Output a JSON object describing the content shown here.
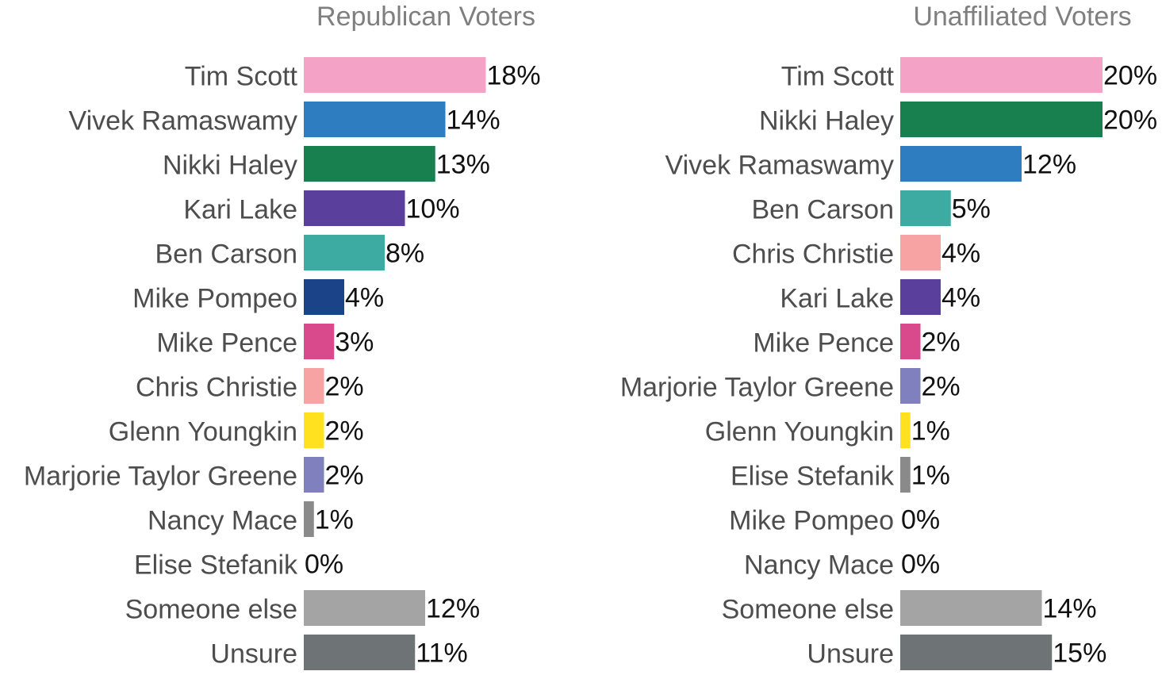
{
  "chart_data": [
    {
      "type": "bar",
      "orientation": "horizontal",
      "title": "Republican Voters",
      "value_suffix": "%",
      "xlim": [
        0,
        20
      ],
      "grid": false,
      "categories": [
        "Tim Scott",
        "Vivek Ramaswamy",
        "Nikki Haley",
        "Kari Lake",
        "Ben Carson",
        "Mike Pompeo",
        "Mike Pence",
        "Chris Christie",
        "Glenn Youngkin",
        "Marjorie Taylor Greene",
        "Nancy Mace",
        "Elise Stefanik",
        "Someone else",
        "Unsure"
      ],
      "values": [
        18,
        14,
        13,
        10,
        8,
        4,
        3,
        2,
        2,
        2,
        1,
        0,
        12,
        11
      ],
      "colors": [
        "#f4a3c6",
        "#2f7dc1",
        "#18804f",
        "#5b3f9c",
        "#3daba2",
        "#1b4488",
        "#d94a8c",
        "#f7a2a3",
        "#ffe11f",
        "#7f80bd",
        "#8a8a8a",
        "#8a8a8a",
        "#a4a4a4",
        "#6e7375"
      ]
    },
    {
      "type": "bar",
      "orientation": "horizontal",
      "title": "Unaffiliated Voters",
      "value_suffix": "%",
      "xlim": [
        0,
        20
      ],
      "grid": false,
      "categories": [
        "Tim Scott",
        "Nikki Haley",
        "Vivek Ramaswamy",
        "Ben Carson",
        "Chris Christie",
        "Kari Lake",
        "Mike Pence",
        "Marjorie Taylor Greene",
        "Glenn Youngkin",
        "Elise Stefanik",
        "Mike Pompeo",
        "Nancy Mace",
        "Someone else",
        "Unsure"
      ],
      "values": [
        20,
        20,
        12,
        5,
        4,
        4,
        2,
        2,
        1,
        1,
        0,
        0,
        14,
        15
      ],
      "colors": [
        "#f4a3c6",
        "#18804f",
        "#2f7dc1",
        "#3daba2",
        "#f7a2a3",
        "#5b3f9c",
        "#d94a8c",
        "#7f80bd",
        "#ffe11f",
        "#8a8a8a",
        "#1b4488",
        "#8a8a8a",
        "#a4a4a4",
        "#6e7375"
      ]
    }
  ]
}
